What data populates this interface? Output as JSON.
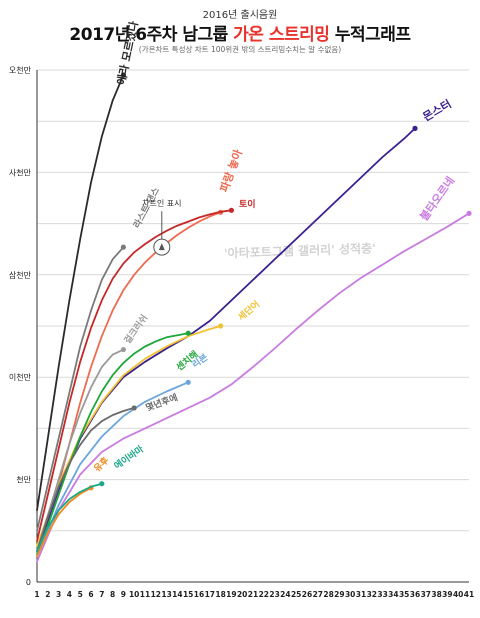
{
  "header": {
    "supertitle": "2016년 출시음원",
    "title_prefix": "2017년 6주차 남그룹 ",
    "title_highlight": "가온 스트리밍",
    "title_suffix": " 누적그래프",
    "note": "(가온차트 특성상 차트 100위권 밖의 스트리밍수치는 알 수없음)"
  },
  "watermark": "'아타포트그램 갤러리' 성적충'",
  "chart_data": {
    "type": "line",
    "x": [
      1,
      2,
      3,
      4,
      5,
      6,
      7,
      8,
      9,
      10,
      11,
      12,
      13,
      14,
      15,
      16,
      17,
      18,
      19,
      20,
      21,
      22,
      23,
      24,
      25,
      26,
      27,
      28,
      29,
      30,
      31,
      32,
      33,
      34,
      35,
      36,
      37,
      38,
      39,
      40,
      41
    ],
    "xlim": [
      1,
      41
    ],
    "y_tick_labels": [
      "0",
      "천만",
      "이천만",
      "삼천만",
      "사천만",
      "오천만"
    ],
    "y_tick_values": [
      0,
      10000000,
      20000000,
      30000000,
      40000000,
      50000000
    ],
    "ylim": [
      0,
      50000000
    ],
    "grid": true,
    "annotation": {
      "text": "차트인 표시",
      "x": 12,
      "y": 37000000
    },
    "series": [
      {
        "name": "에라 모르겠다",
        "color": "#2a2a2a",
        "label_x": 9.1,
        "label_y": 48500000,
        "points": [
          [
            1,
            7000000
          ],
          [
            2,
            14000000
          ],
          [
            3,
            21000000
          ],
          [
            4,
            27500000
          ],
          [
            5,
            33500000
          ],
          [
            6,
            39000000
          ],
          [
            7,
            43500000
          ],
          [
            8,
            47000000
          ],
          [
            9,
            49500000
          ]
        ]
      },
      {
        "name": "라스트 댄스",
        "color": "#7a7a7a",
        "label_x": 10.4,
        "label_y": 34500000,
        "points": [
          [
            1,
            5000000
          ],
          [
            2,
            9500000
          ],
          [
            3,
            14000000
          ],
          [
            4,
            18500000
          ],
          [
            5,
            23000000
          ],
          [
            6,
            26500000
          ],
          [
            7,
            29500000
          ],
          [
            8,
            31500000
          ],
          [
            9,
            32700000
          ]
        ]
      },
      {
        "name": "파랑 놓아",
        "color": "#ee6a50",
        "label_x": 18.6,
        "label_y": 38000000,
        "points": [
          [
            1,
            3000000
          ],
          [
            2,
            6000000
          ],
          [
            3,
            9500000
          ],
          [
            4,
            13500000
          ],
          [
            5,
            17500000
          ],
          [
            6,
            21000000
          ],
          [
            7,
            24000000
          ],
          [
            8,
            26500000
          ],
          [
            9,
            28500000
          ],
          [
            10,
            30000000
          ],
          [
            11,
            31200000
          ],
          [
            12,
            32200000
          ],
          [
            13,
            33100000
          ],
          [
            14,
            33900000
          ],
          [
            15,
            34600000
          ],
          [
            16,
            35200000
          ],
          [
            17,
            35700000
          ],
          [
            18,
            36100000
          ]
        ]
      },
      {
        "name": "토이",
        "color": "#c62828",
        "label_x": 19.7,
        "label_y": 36600000,
        "points": [
          [
            1,
            4000000
          ],
          [
            2,
            8500000
          ],
          [
            3,
            13000000
          ],
          [
            4,
            17500000
          ],
          [
            5,
            21500000
          ],
          [
            6,
            24800000
          ],
          [
            7,
            27500000
          ],
          [
            8,
            29600000
          ],
          [
            9,
            31100000
          ],
          [
            10,
            32200000
          ],
          [
            11,
            33000000
          ],
          [
            12,
            33700000
          ],
          [
            13,
            34300000
          ],
          [
            14,
            34800000
          ],
          [
            15,
            35200000
          ],
          [
            16,
            35600000
          ],
          [
            17,
            35900000
          ],
          [
            18,
            36150000
          ],
          [
            19,
            36300000
          ]
        ]
      },
      {
        "name": "몬스터",
        "color": "#3a1f8f",
        "label_x": 37,
        "label_y": 45000000,
        "points": [
          [
            1,
            3000000
          ],
          [
            3,
            9000000
          ],
          [
            5,
            14000000
          ],
          [
            7,
            17500000
          ],
          [
            9,
            20000000
          ],
          [
            11,
            21500000
          ],
          [
            13,
            22800000
          ],
          [
            15,
            24000000
          ],
          [
            17,
            25500000
          ],
          [
            19,
            27500000
          ],
          [
            21,
            29500000
          ],
          [
            23,
            31500000
          ],
          [
            25,
            33500000
          ],
          [
            27,
            35500000
          ],
          [
            29,
            37500000
          ],
          [
            31,
            39500000
          ],
          [
            33,
            41500000
          ],
          [
            35,
            43300000
          ],
          [
            36,
            44300000
          ]
        ]
      },
      {
        "name": "불타오르네",
        "color": "#c97be0",
        "label_x": 37,
        "label_y": 35200000,
        "points": [
          [
            1,
            2000000
          ],
          [
            3,
            7000000
          ],
          [
            5,
            10500000
          ],
          [
            7,
            12700000
          ],
          [
            9,
            14000000
          ],
          [
            11,
            15000000
          ],
          [
            13,
            16000000
          ],
          [
            15,
            17000000
          ],
          [
            17,
            18000000
          ],
          [
            19,
            19300000
          ],
          [
            21,
            21000000
          ],
          [
            23,
            22800000
          ],
          [
            25,
            24700000
          ],
          [
            27,
            26500000
          ],
          [
            29,
            28200000
          ],
          [
            31,
            29700000
          ],
          [
            33,
            31000000
          ],
          [
            35,
            32300000
          ],
          [
            37,
            33500000
          ],
          [
            39,
            34700000
          ],
          [
            41,
            36000000
          ]
        ]
      },
      {
        "name": "세단어",
        "color": "#f2c230",
        "label_x": 19.9,
        "label_y": 25500000,
        "points": [
          [
            1,
            3500000
          ],
          [
            3,
            9500000
          ],
          [
            5,
            14200000
          ],
          [
            7,
            17600000
          ],
          [
            9,
            20200000
          ],
          [
            11,
            21800000
          ],
          [
            13,
            23000000
          ],
          [
            15,
            24000000
          ],
          [
            17,
            24700000
          ],
          [
            18,
            25000000
          ]
        ]
      },
      {
        "name": "센치해",
        "color": "#1fa63a",
        "label_x": 14.2,
        "label_y": 20600000,
        "points": [
          [
            1,
            2700000
          ],
          [
            2,
            5500000
          ],
          [
            3,
            8500000
          ],
          [
            4,
            11500000
          ],
          [
            5,
            14200000
          ],
          [
            6,
            16600000
          ],
          [
            7,
            18600000
          ],
          [
            8,
            20200000
          ],
          [
            9,
            21400000
          ],
          [
            10,
            22300000
          ],
          [
            11,
            23000000
          ],
          [
            12,
            23500000
          ],
          [
            13,
            23900000
          ],
          [
            14,
            24100000
          ],
          [
            15,
            24300000
          ]
        ]
      },
      {
        "name": "걸크러쉬",
        "color": "#9a9a9a",
        "label_x": 9.5,
        "label_y": 23200000,
        "points": [
          [
            1,
            3000000
          ],
          [
            2,
            6500000
          ],
          [
            3,
            10000000
          ],
          [
            4,
            13500000
          ],
          [
            5,
            16500000
          ],
          [
            6,
            19000000
          ],
          [
            7,
            21000000
          ],
          [
            8,
            22200000
          ],
          [
            9,
            22700000
          ]
        ]
      },
      {
        "name": "리본",
        "color": "#6aa6dd",
        "label_x": 15.6,
        "label_y": 20900000,
        "points": [
          [
            1,
            2500000
          ],
          [
            3,
            7500000
          ],
          [
            5,
            11500000
          ],
          [
            7,
            14200000
          ],
          [
            9,
            16200000
          ],
          [
            11,
            17600000
          ],
          [
            13,
            18600000
          ],
          [
            15,
            19500000
          ]
        ]
      },
      {
        "name": "몇년후에",
        "color": "#6b6b6b",
        "label_x": 11.2,
        "label_y": 16700000,
        "points": [
          [
            1,
            3000000
          ],
          [
            2,
            6300000
          ],
          [
            3,
            9300000
          ],
          [
            4,
            11600000
          ],
          [
            5,
            13400000
          ],
          [
            6,
            14800000
          ],
          [
            7,
            15700000
          ],
          [
            8,
            16300000
          ],
          [
            9,
            16700000
          ],
          [
            10,
            17000000
          ]
        ]
      },
      {
        "name": "유후",
        "color": "#f08a1c",
        "label_x": 6.6,
        "label_y": 10700000,
        "points": [
          [
            1,
            2500000
          ],
          [
            2,
            4800000
          ],
          [
            3,
            6600000
          ],
          [
            4,
            7800000
          ],
          [
            5,
            8600000
          ],
          [
            6,
            9200000
          ]
        ]
      },
      {
        "name": "에이바마",
        "color": "#1aa88a",
        "label_x": 8.4,
        "label_y": 11000000,
        "points": [
          [
            1,
            3000000
          ],
          [
            2,
            5300000
          ],
          [
            3,
            7000000
          ],
          [
            4,
            8100000
          ],
          [
            5,
            8800000
          ],
          [
            6,
            9300000
          ],
          [
            7,
            9600000
          ]
        ]
      }
    ]
  }
}
